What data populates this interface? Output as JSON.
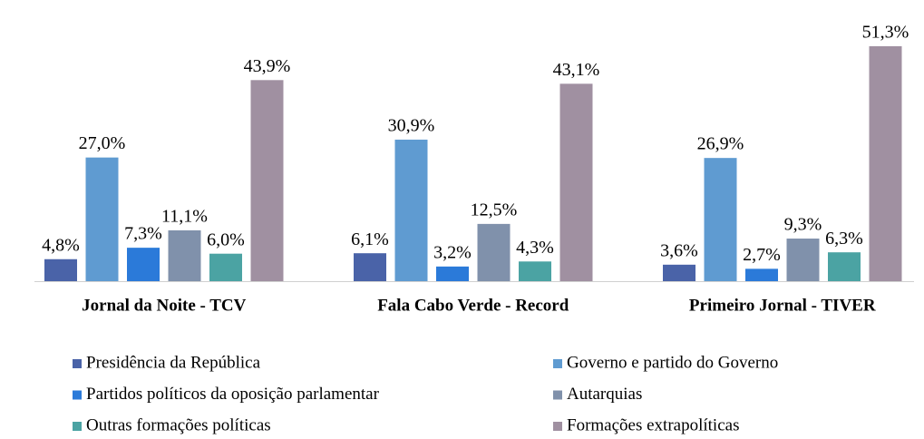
{
  "chart_data": {
    "type": "bar",
    "categories": [
      "Jornal da Noite - TCV",
      "Fala Cabo Verde - Record",
      "Primeiro Jornal - TIVER"
    ],
    "series": [
      {
        "name": "Presidência da República",
        "color": "#4a63a8",
        "values": [
          4.8,
          6.1,
          3.6
        ],
        "value_labels": [
          "4,8%",
          "6,1%",
          "3,6%"
        ]
      },
      {
        "name": "Governo e partido do Governo",
        "color": "#5f9bd1",
        "values": [
          27.0,
          30.9,
          26.9
        ],
        "value_labels": [
          "27,0%",
          "30,9%",
          "26,9%"
        ]
      },
      {
        "name": "Partidos políticos da oposição parlamentar",
        "color": "#2b7ad9",
        "values": [
          7.3,
          3.2,
          2.7
        ],
        "value_labels": [
          "7,3%",
          "3,2%",
          "2,7%"
        ]
      },
      {
        "name": "Autarquias",
        "color": "#8091ab",
        "values": [
          11.1,
          12.5,
          9.3
        ],
        "value_labels": [
          "11,1%",
          "12,5%",
          "9,3%"
        ]
      },
      {
        "name": "Outras formações políticas",
        "color": "#4ba3a3",
        "values": [
          6.0,
          4.3,
          6.3
        ],
        "value_labels": [
          "6,0%",
          "4,3%",
          "6,3%"
        ]
      },
      {
        "name": "Formações extrapolíticas",
        "color": "#a090a1",
        "values": [
          43.9,
          43.1,
          51.3
        ],
        "value_labels": [
          "43,9%",
          "43,1%",
          "51,3%"
        ]
      }
    ]
  }
}
